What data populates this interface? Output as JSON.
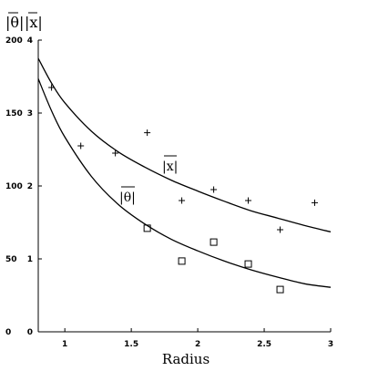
{
  "chart_data": {
    "type": "scatter",
    "xlabel": "Radius",
    "x_ticks": [
      "1",
      "1.5",
      "2",
      "2.5",
      "3"
    ],
    "xlim": [
      0.8,
      3.0
    ],
    "left_axis": {
      "label": "|θ|",
      "ylim": [
        0,
        200
      ],
      "ticks": [
        "0",
        "50",
        "100",
        "150",
        "200"
      ]
    },
    "inner_axis": {
      "label": "|x|",
      "ylim": [
        0,
        4
      ],
      "ticks": [
        "0",
        "1",
        "2",
        "3",
        "4"
      ]
    },
    "series": [
      {
        "name": "|x|",
        "marker": "plus",
        "units": "inner_axis",
        "points": [
          [
            0.9,
            3.35
          ],
          [
            1.12,
            2.55
          ],
          [
            1.38,
            2.45
          ],
          [
            1.62,
            2.73
          ],
          [
            1.88,
            1.8
          ],
          [
            2.12,
            1.95
          ],
          [
            2.38,
            1.8
          ],
          [
            2.62,
            1.4
          ],
          [
            2.88,
            1.77
          ]
        ],
        "curve": {
          "x": [
            0.8,
            0.9,
            1.0,
            1.2,
            1.4,
            1.6,
            1.8,
            2.0,
            2.2,
            2.4,
            2.6,
            2.8,
            3.0
          ],
          "y": [
            3.75,
            3.41,
            3.14,
            2.75,
            2.47,
            2.26,
            2.08,
            1.93,
            1.79,
            1.66,
            1.56,
            1.46,
            1.37
          ]
        }
      },
      {
        "name": "|θ|",
        "marker": "square",
        "units": "inner_axis",
        "points": [
          [
            1.62,
            1.42
          ],
          [
            1.88,
            0.97
          ],
          [
            2.12,
            1.23
          ],
          [
            2.38,
            0.93
          ],
          [
            2.62,
            0.58
          ]
        ],
        "curve": {
          "x": [
            0.8,
            0.9,
            1.0,
            1.2,
            1.4,
            1.6,
            1.8,
            2.0,
            2.2,
            2.4,
            2.6,
            2.8,
            3.0
          ],
          "y": [
            3.47,
            3.03,
            2.67,
            2.13,
            1.75,
            1.48,
            1.27,
            1.11,
            0.97,
            0.85,
            0.75,
            0.66,
            0.61
          ]
        }
      }
    ],
    "grid": false,
    "legend": "none"
  }
}
